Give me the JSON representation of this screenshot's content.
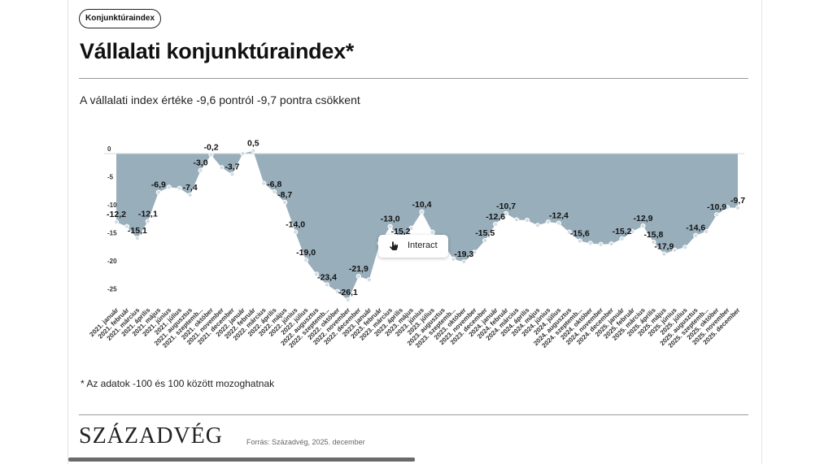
{
  "badge": "Konjunktúraindex",
  "title": "Vállalati konjunktúraindex*",
  "subtitle": "A vállalati index értéke -9,6 pontról -9,7 pontra csökkent",
  "footnote": "* Az adatok -100 és 100 között mozoghatnak",
  "logo": "SZÁZADVÉG",
  "source": "Forrás: Századvég, 2025. december",
  "interact_label": "Interact",
  "colors": {
    "area": "#98aebb",
    "point": "#d3dde3",
    "point_stroke": "#ffffff"
  },
  "chart_data": {
    "type": "area",
    "title": "",
    "xlabel": "",
    "ylabel": "",
    "ylim": [
      -27,
      0
    ],
    "yticks": [
      {
        "v": 0,
        "t": "0"
      },
      {
        "v": -5,
        "t": "-5"
      },
      {
        "v": -10,
        "t": "-10"
      },
      {
        "v": -15,
        "t": "-15"
      },
      {
        "v": -20,
        "t": "-20"
      },
      {
        "v": -25,
        "t": "-25"
      }
    ],
    "categories": [
      "2021. január",
      "2021. február",
      "2021. március",
      "2021. április",
      "2021. május",
      "2021. június",
      "2021. július",
      "2021. augusztus",
      "2021. szeptemb...",
      "2021. október",
      "2021. november",
      "2021. december",
      "2022. január",
      "2022. február",
      "2022. március",
      "2022. április",
      "2022. május",
      "2022. június",
      "2022. július",
      "2022. augusztus",
      "2022. szeptemb...",
      "2022. október",
      "2022. november",
      "2022. december",
      "2023. január",
      "2023. február",
      "2023. március",
      "2023. április",
      "2023. május",
      "2023. június",
      "2023. július",
      "2023. augusztus",
      "2023. szeptemb...",
      "2023. október",
      "2023. november",
      "2023. december",
      "2024. január",
      "2024. február",
      "2024. március",
      "2024. április",
      "2024. május",
      "2024. június",
      "2024. július",
      "2024. augusztus",
      "2024. szeptemb...",
      "2024. október",
      "2024. november",
      "2024. december",
      "2025. január",
      "2025. február",
      "2025. március",
      "2025. április",
      "2025. május",
      "2025. június",
      "2025. július",
      "2025. augusztus",
      "2025. szeptemb...",
      "2025. október",
      "2025. november",
      "2025. december"
    ],
    "values": [
      -12.2,
      -13.0,
      -15.1,
      -12.1,
      -6.9,
      -6.0,
      -6.2,
      -7.4,
      -3.0,
      -0.2,
      -2.5,
      -3.7,
      0.0,
      0.5,
      -5.3,
      -6.8,
      -8.7,
      -14.0,
      -19.0,
      -21.5,
      -23.4,
      -24.6,
      -26.1,
      -21.9,
      -22.5,
      -16.0,
      -13.0,
      -15.2,
      -13.3,
      -10.4,
      -14.0,
      -16.0,
      -18.8,
      -19.3,
      -17.6,
      -15.5,
      -12.6,
      -10.7,
      -11.8,
      -11.9,
      -12.8,
      -12.2,
      -12.4,
      -14.0,
      -15.6,
      -16.0,
      -16.2,
      -16.1,
      -15.2,
      -13.9,
      -12.9,
      -15.8,
      -17.9,
      -17.2,
      -16.7,
      -14.6,
      -13.9,
      -10.9,
      -9.6,
      -9.7
    ],
    "data_labels": [
      {
        "i": 0,
        "t": "-12,2"
      },
      {
        "i": 2,
        "t": "-15,1"
      },
      {
        "i": 3,
        "t": "-12,1"
      },
      {
        "i": 4,
        "t": "-6,9"
      },
      {
        "i": 7,
        "t": "-7,4"
      },
      {
        "i": 8,
        "t": "-3,0"
      },
      {
        "i": 9,
        "t": "-0,2"
      },
      {
        "i": 11,
        "t": "-3,7"
      },
      {
        "i": 13,
        "t": "0,5"
      },
      {
        "i": 15,
        "t": "-6,8"
      },
      {
        "i": 16,
        "t": "-8,7"
      },
      {
        "i": 17,
        "t": "-14,0"
      },
      {
        "i": 18,
        "t": "-19,0"
      },
      {
        "i": 20,
        "t": "-23,4"
      },
      {
        "i": 22,
        "t": "-26,1"
      },
      {
        "i": 23,
        "t": "-21,9"
      },
      {
        "i": 26,
        "t": "-13,0"
      },
      {
        "i": 27,
        "t": "-15,2"
      },
      {
        "i": 29,
        "t": "-10,4"
      },
      {
        "i": 33,
        "t": "-19,3"
      },
      {
        "i": 35,
        "t": "-15,5"
      },
      {
        "i": 36,
        "t": "-12,6"
      },
      {
        "i": 37,
        "t": "-10,7"
      },
      {
        "i": 42,
        "t": "-12,4"
      },
      {
        "i": 44,
        "t": "-15,6"
      },
      {
        "i": 48,
        "t": "-15,2"
      },
      {
        "i": 50,
        "t": "-12,9"
      },
      {
        "i": 51,
        "t": "-15,8"
      },
      {
        "i": 52,
        "t": "-17,9"
      },
      {
        "i": 55,
        "t": "-14,6"
      },
      {
        "i": 57,
        "t": "-10,9"
      },
      {
        "i": 59,
        "t": "-9,7"
      }
    ],
    "grid": false,
    "legend": "none"
  }
}
